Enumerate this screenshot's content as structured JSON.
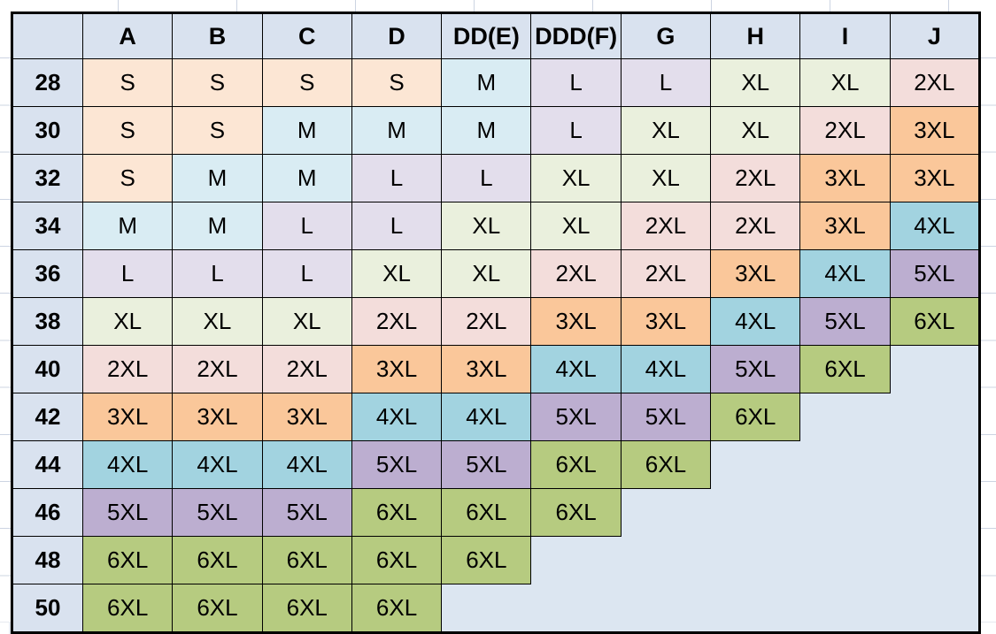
{
  "chart_data": {
    "type": "table",
    "description_visible_content_only": "band-size by cup-letter size chart",
    "columns": [
      "A",
      "B",
      "C",
      "D",
      "DD(E)",
      "DDD(F)",
      "G",
      "H",
      "I",
      "J"
    ],
    "row_labels": [
      "28",
      "30",
      "32",
      "34",
      "36",
      "38",
      "40",
      "42",
      "44",
      "46",
      "48",
      "50"
    ],
    "rows": [
      [
        "S",
        "S",
        "S",
        "S",
        "M",
        "L",
        "L",
        "XL",
        "XL",
        "2XL"
      ],
      [
        "S",
        "S",
        "M",
        "M",
        "M",
        "L",
        "XL",
        "XL",
        "2XL",
        "3XL"
      ],
      [
        "S",
        "M",
        "M",
        "L",
        "L",
        "XL",
        "XL",
        "2XL",
        "3XL",
        "3XL"
      ],
      [
        "M",
        "M",
        "L",
        "L",
        "XL",
        "XL",
        "2XL",
        "2XL",
        "3XL",
        "4XL"
      ],
      [
        "L",
        "L",
        "L",
        "XL",
        "XL",
        "2XL",
        "2XL",
        "3XL",
        "4XL",
        "5XL"
      ],
      [
        "XL",
        "XL",
        "XL",
        "2XL",
        "2XL",
        "3XL",
        "3XL",
        "4XL",
        "5XL",
        "6XL"
      ],
      [
        "2XL",
        "2XL",
        "2XL",
        "3XL",
        "3XL",
        "4XL",
        "4XL",
        "5XL",
        "6XL",
        ""
      ],
      [
        "3XL",
        "3XL",
        "3XL",
        "4XL",
        "4XL",
        "5XL",
        "5XL",
        "6XL",
        "",
        ""
      ],
      [
        "4XL",
        "4XL",
        "4XL",
        "5XL",
        "5XL",
        "6XL",
        "6XL",
        "",
        "",
        ""
      ],
      [
        "5XL",
        "5XL",
        "5XL",
        "6XL",
        "6XL",
        "6XL",
        "",
        "",
        "",
        ""
      ],
      [
        "6XL",
        "6XL",
        "6XL",
        "6XL",
        "6XL",
        "",
        "",
        "",
        "",
        ""
      ],
      [
        "6XL",
        "6XL",
        "6XL",
        "6XL",
        "",
        "",
        "",
        "",
        "",
        ""
      ]
    ],
    "size_color_legend": {
      "S": "#fce6d4",
      "M": "#d9ecf3",
      "L": "#e3deec",
      "XL": "#eaf0dd",
      "2XL": "#f3dddb",
      "3XL": "#fac79a",
      "4XL": "#a2d3e0",
      "5XL": "#bcaed0",
      "6XL": "#b6cb80"
    }
  },
  "colors": {
    "header_fill": "#d9e2ef",
    "empty_fill": "#dce6f1",
    "table_border": "#000000",
    "sheet_gridline": "#ccd4e2",
    "sheet_background": "#ffffff",
    "text": "#000000"
  }
}
